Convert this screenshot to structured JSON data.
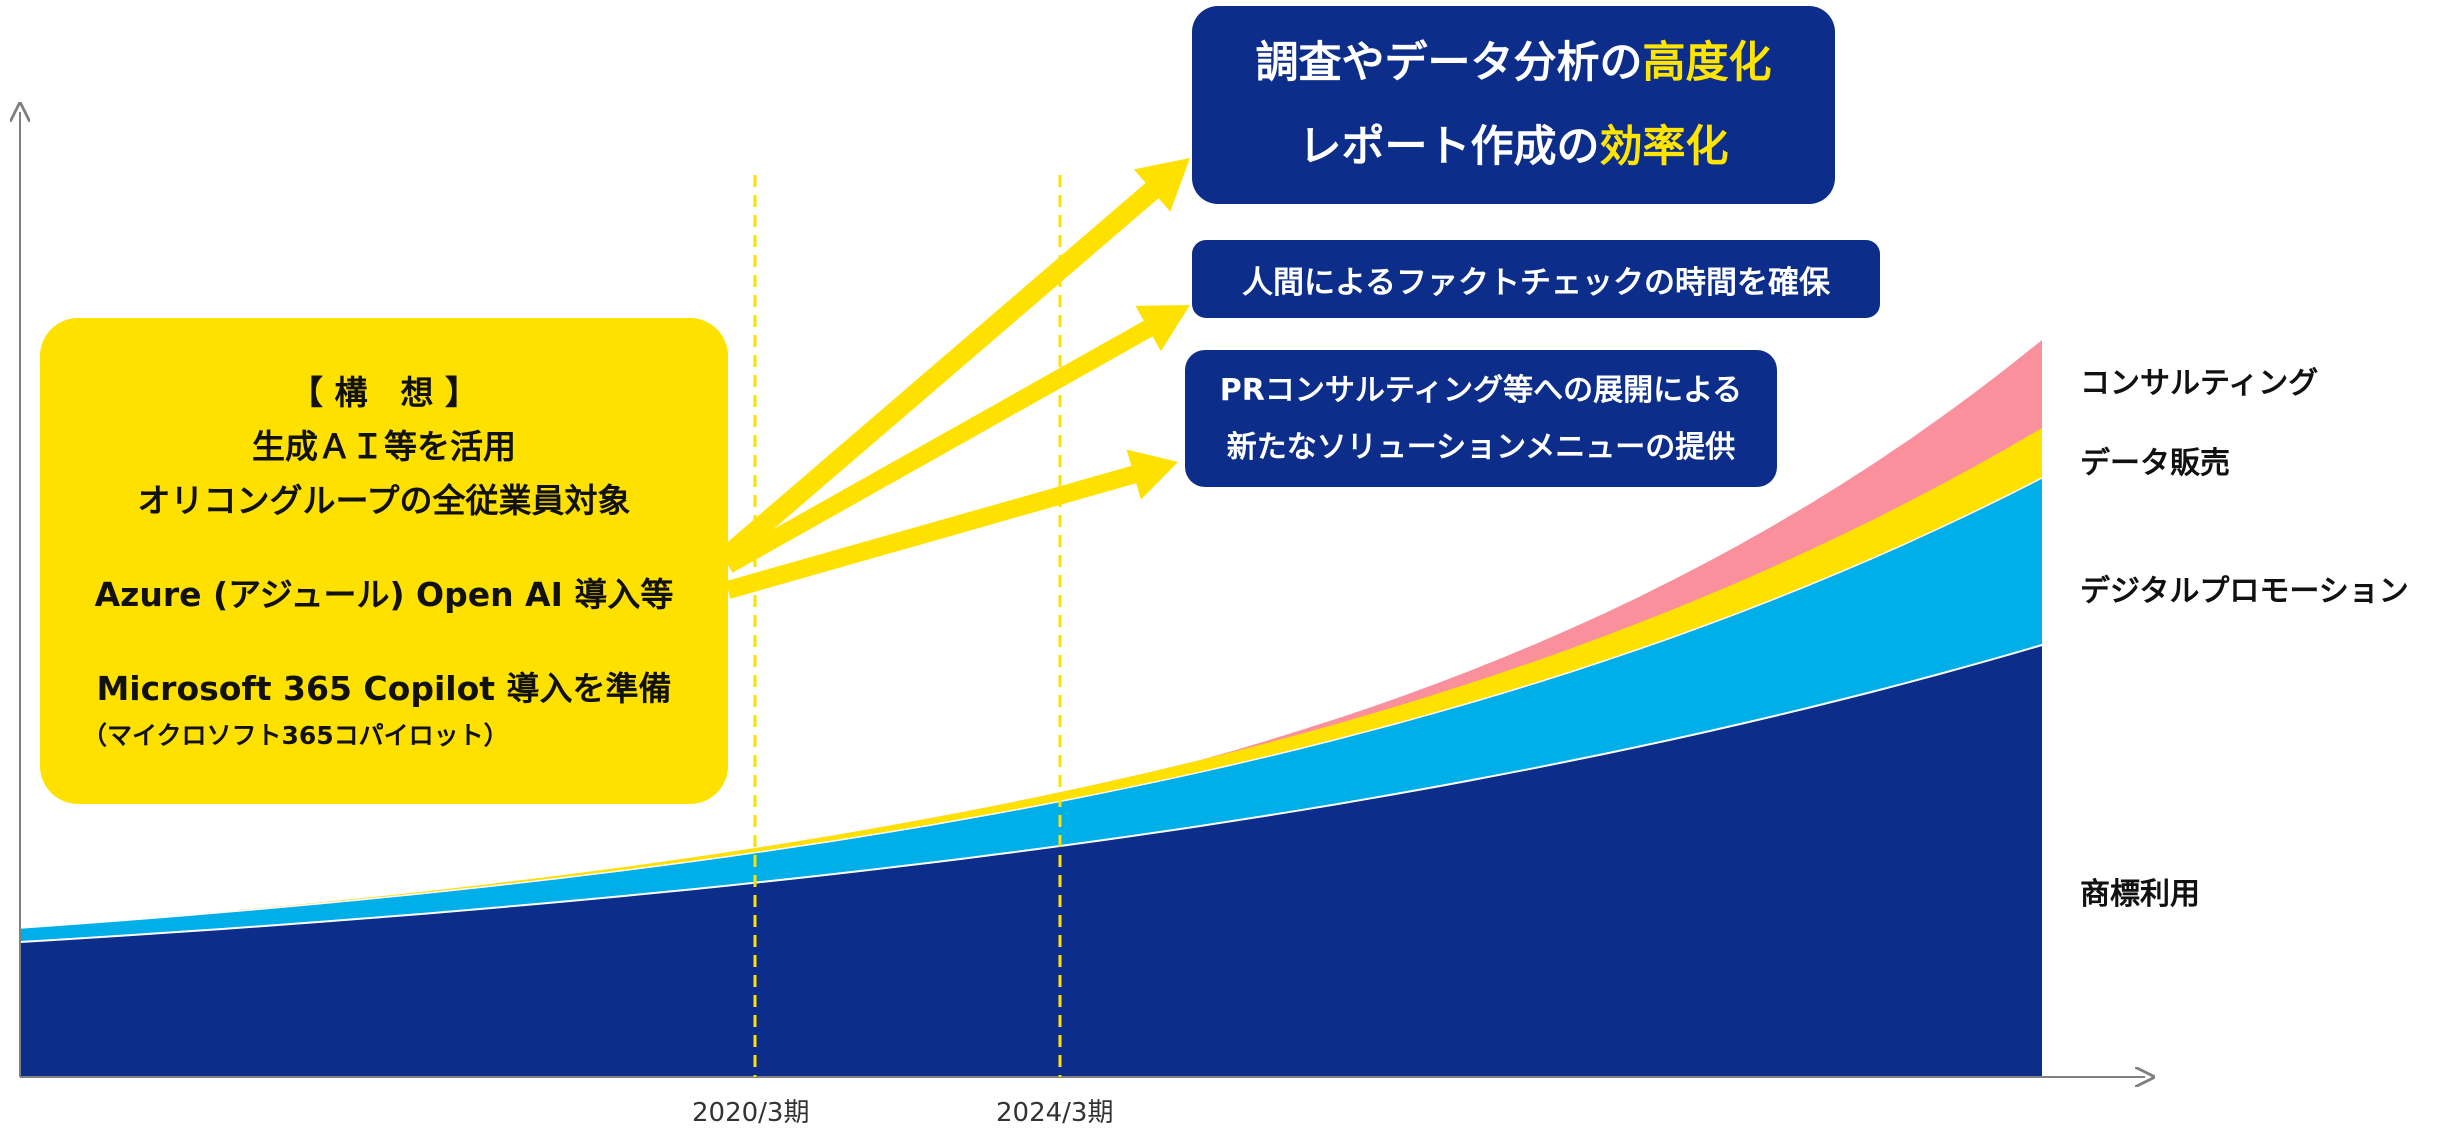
{
  "colors": {
    "trademark": "#0c2d8a",
    "digital_promotion": "#00aee8",
    "data_sales": "#ffe100",
    "consulting": "#fa909c",
    "box_navy": "#0c2d8a",
    "concept_yellow": "#ffe100",
    "highlight_yellow": "#ffe500"
  },
  "top_box": {
    "line1_prefix": "調査やデータ分析の",
    "line1_highlight": "高度化",
    "line2_prefix": "レポート作成の",
    "line2_highlight": "効率化"
  },
  "middle_box": {
    "text": "人間によるファクトチェックの時間を確保"
  },
  "lower_box": {
    "line1": "PRコンサルティング等への展開による",
    "line2": "新たなソリューションメニューの提供"
  },
  "concept_box": {
    "heading": "【 構　想 】",
    "line1": "生成ＡＩ等を活用",
    "line2": "オリコングループの全従業員対象",
    "line3": "Azure (アジュール) Open AI 導入等",
    "line4": "Microsoft 365 Copilot 導入を準備",
    "line5": "（マイクロソフト365コパイロット）"
  },
  "segments": {
    "consulting": "コンサルティング",
    "data_sales": "データ販売",
    "digital_promotion": "デジタルプロモーション",
    "trademark": "商標利用"
  },
  "x_ticks": {
    "t2020": "2020/3期",
    "t2024": "2024/3期"
  }
}
